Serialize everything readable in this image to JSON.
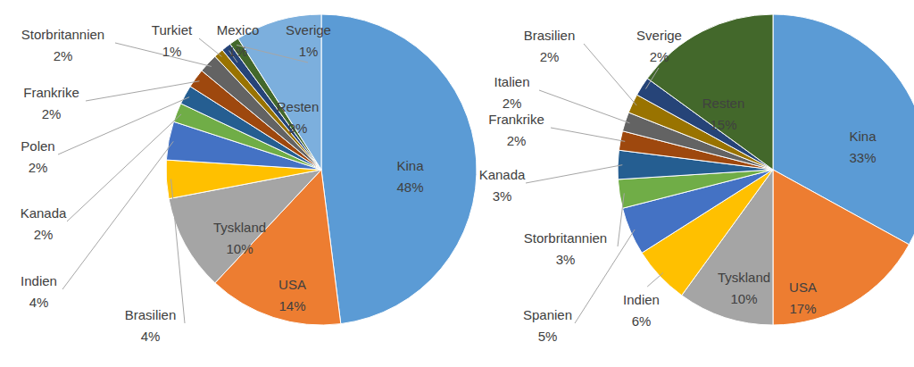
{
  "chart_data": [
    {
      "type": "pie",
      "categories": [
        "Kina",
        "USA",
        "Tyskland",
        "Brasilien",
        "Indien",
        "Kanada",
        "Polen",
        "Frankrike",
        "Storbritannien",
        "Turkiet",
        "Mexico",
        "Sverige",
        "Resten"
      ],
      "values": [
        48,
        14,
        10,
        4,
        4,
        2,
        2,
        2,
        2,
        1,
        1,
        1,
        9
      ],
      "value_labels": [
        "48%",
        "14%",
        "10%",
        "4%",
        "4%",
        "2%",
        "2%",
        "2%",
        "2%",
        "1%",
        "1%",
        "1%",
        "9%"
      ],
      "colors": [
        "#5B9BD5",
        "#ED7D31",
        "#A5A5A5",
        "#FFC000",
        "#4472C4",
        "#70AD47",
        "#255E91",
        "#9E480E",
        "#636363",
        "#997300",
        "#264478",
        "#43682B",
        "#7CAFDD"
      ],
      "data_labels": true
    },
    {
      "type": "pie",
      "categories": [
        "Kina",
        "USA",
        "Tyskland",
        "Indien",
        "Spanien",
        "Storbritannien",
        "Kanada",
        "Frankrike",
        "Italien",
        "Brasilien",
        "Sverige",
        "Resten"
      ],
      "values": [
        33,
        17,
        10,
        6,
        5,
        3,
        3,
        2,
        2,
        2,
        2,
        15
      ],
      "value_labels": [
        "33%",
        "17%",
        "10%",
        "6%",
        "5%",
        "3%",
        "3%",
        "2%",
        "2%",
        "2%",
        "2%",
        "15%"
      ],
      "colors": [
        "#5B9BD5",
        "#ED7D31",
        "#A5A5A5",
        "#FFC000",
        "#4472C4",
        "#70AD47",
        "#255E91",
        "#9E480E",
        "#636363",
        "#997300",
        "#264478",
        "#43682B"
      ],
      "data_labels": true
    }
  ]
}
